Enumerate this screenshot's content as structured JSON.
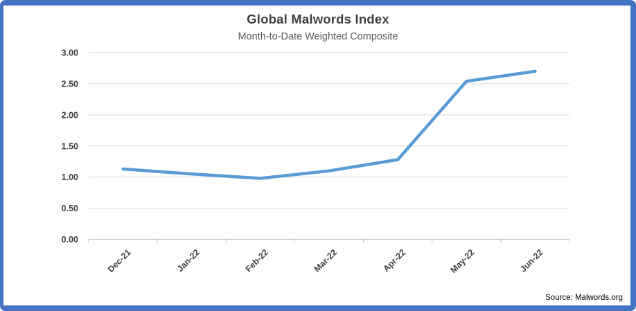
{
  "chart_data": {
    "type": "line",
    "title": "Global Malwords Index",
    "subtitle": "Month-to-Date Weighted Composite",
    "categories": [
      "Dec-21",
      "Jan-22",
      "Feb-22",
      "Mar-22",
      "Apr-22",
      "May-22",
      "Jun-22"
    ],
    "series": [
      {
        "name": "Global Malwords Index",
        "values": [
          1.13,
          1.05,
          0.98,
          1.1,
          1.28,
          2.54,
          2.7
        ]
      }
    ],
    "ylim": [
      0,
      3
    ],
    "ytick_labels": [
      "0.00",
      "0.50",
      "1.00",
      "1.50",
      "2.00",
      "2.50",
      "3.00"
    ],
    "ytick_values": [
      0,
      0.5,
      1,
      1.5,
      2,
      2.5,
      3
    ],
    "grid": "horizontal",
    "legend_position": "none",
    "x_label_rotation_deg": -45
  },
  "footer": {
    "source_label": "Source: Malwords.org"
  },
  "colors": {
    "frame_border": "#4472C4",
    "series_line": "#5B9BD5",
    "title_text": "#404040",
    "subtitle_text": "#595959",
    "axis_label_text": "#404040",
    "gridline": "#D9D9D9",
    "axis_line": "#BFBFBF",
    "source_text": "#000000"
  }
}
